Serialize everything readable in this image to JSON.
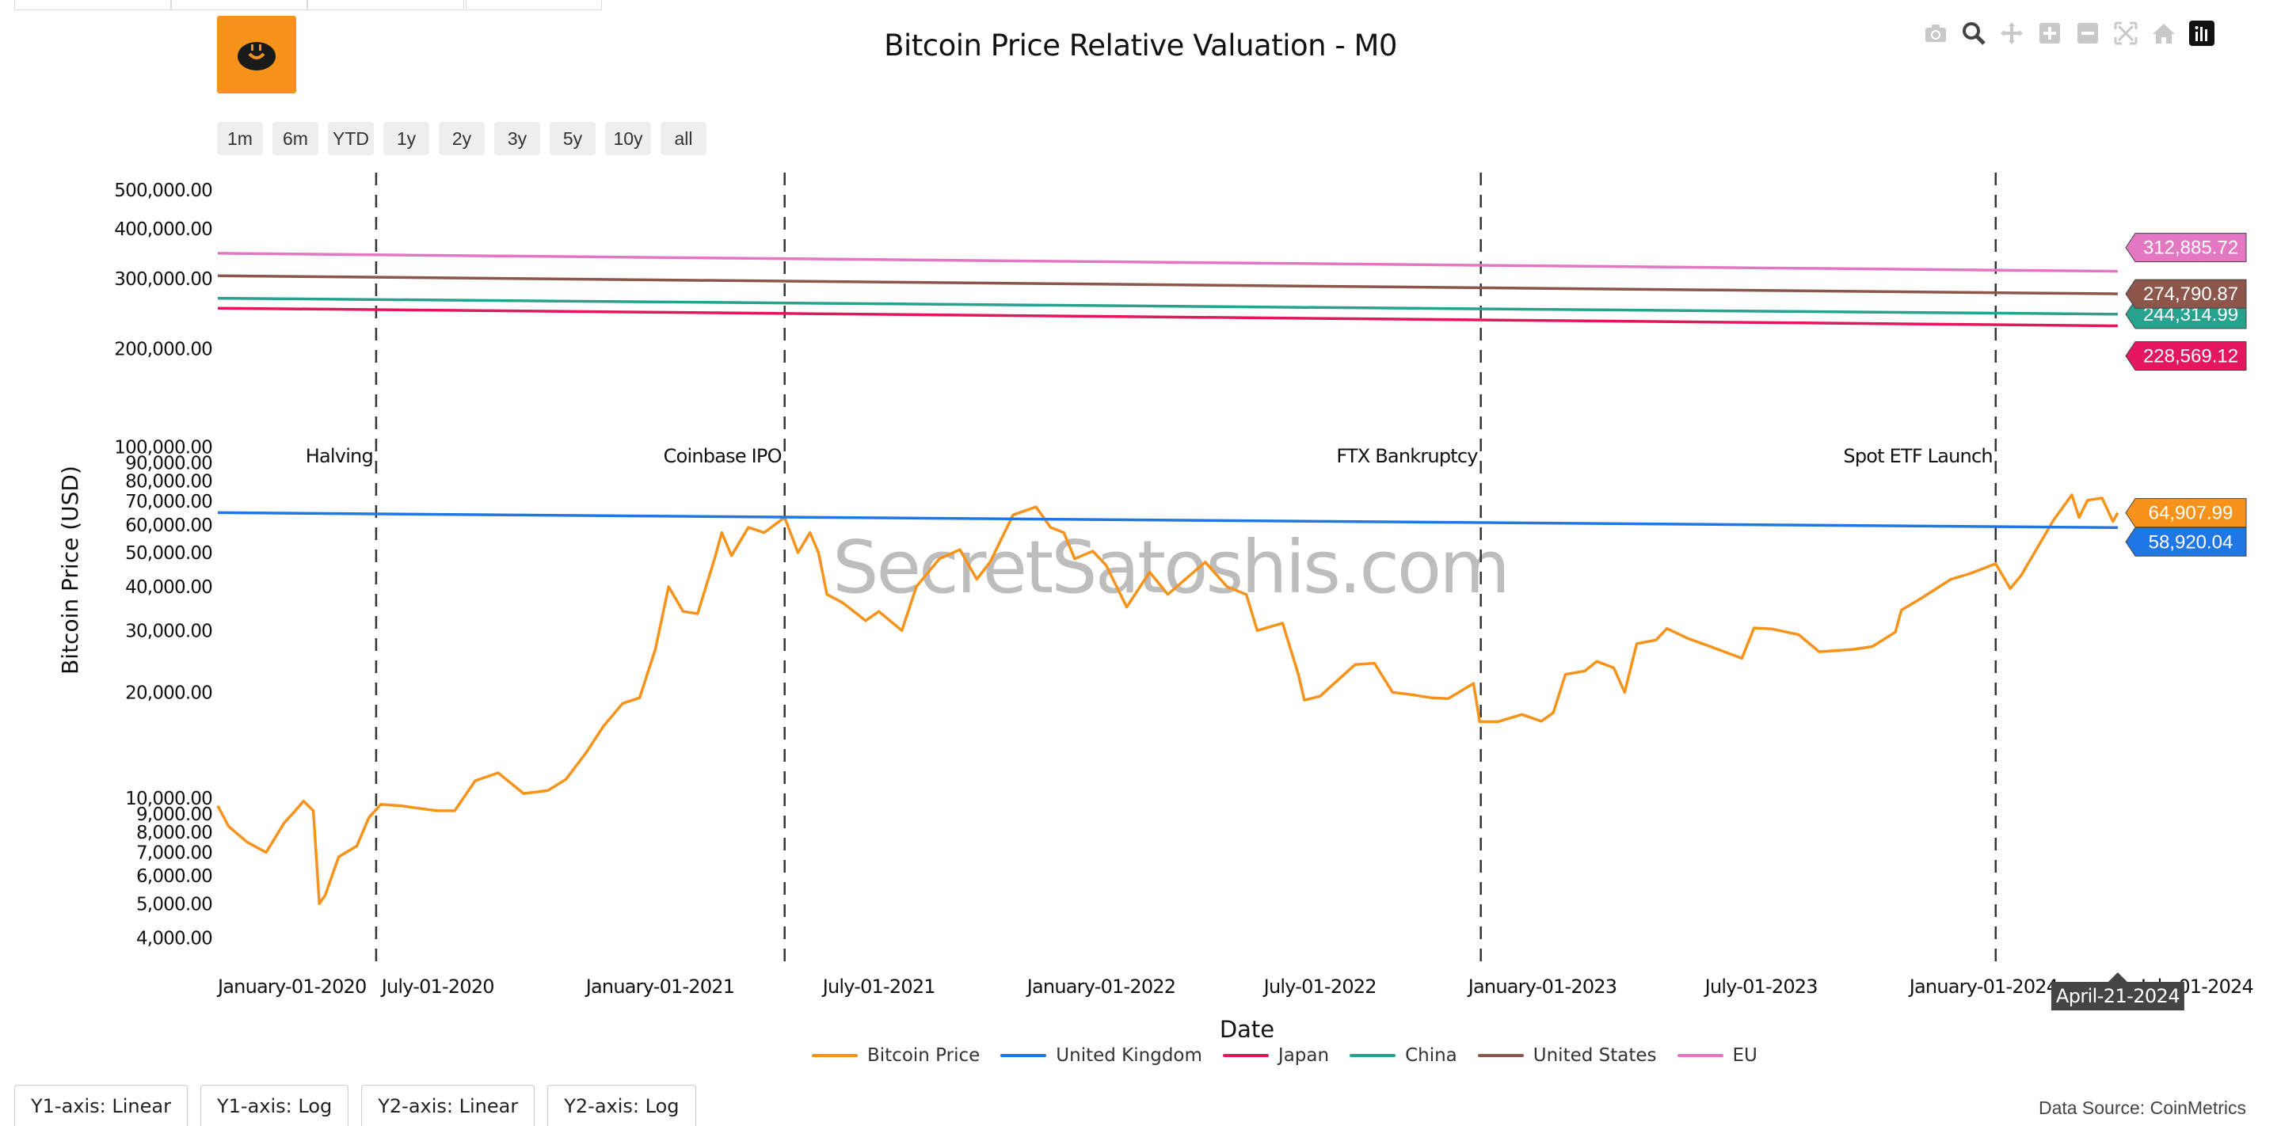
{
  "title": "Bitcoin Price Relative Valuation - M0",
  "range_buttons": [
    "1m",
    "6m",
    "YTD",
    "1y",
    "2y",
    "3y",
    "5y",
    "10y",
    "all"
  ],
  "axis_buttons": [
    "Y1-axis: Linear",
    "Y1-axis: Log",
    "Y2-axis: Linear",
    "Y2-axis: Log"
  ],
  "data_source": "Data Source: CoinMetrics",
  "watermark": "SecretSatoshis.com",
  "hover_label": "April-21-2024",
  "modebar_icons": [
    "camera-icon",
    "zoom-icon",
    "pan-icon",
    "zoom-in-icon",
    "zoom-out-icon",
    "autoscale-icon",
    "reset-axes-icon",
    "plotly-logo-icon"
  ],
  "chart_data": {
    "type": "line",
    "title": "Bitcoin Price Relative Valuation - M0",
    "xlabel": "Date",
    "ylabel": "Bitcoin Price (USD)",
    "yscale": "log",
    "x_range": [
      "2020-01-01",
      "2024-04-25"
    ],
    "y1_range": [
      3500,
      105000
    ],
    "y2_range": [
      175000,
      560000
    ],
    "x_ticks": [
      "January-01-2020",
      "July-01-2020",
      "January-01-2021",
      "July-01-2021",
      "January-01-2022",
      "July-01-2022",
      "January-01-2023",
      "July-01-2023",
      "January-01-2024",
      "July-01-2024"
    ],
    "y1_ticks": [
      "4,000.00",
      "5,000.00",
      "6,000.00",
      "7,000.00",
      "8,000.00",
      "9,000.00",
      "10,000.00",
      "20,000.00",
      "30,000.00",
      "40,000.00",
      "50,000.00",
      "60,000.00",
      "70,000.00",
      "80,000.00",
      "90,000.00",
      "100,000.00"
    ],
    "y2_ticks": [
      "200,000.00",
      "300,000.00",
      "400,000.00",
      "500,000.00"
    ],
    "events": [
      {
        "date": "2020-05-11",
        "label": "Halving"
      },
      {
        "date": "2021-04-14",
        "label": "Coinbase IPO"
      },
      {
        "date": "2022-11-11",
        "label": "FTX Bankruptcy"
      },
      {
        "date": "2024-01-11",
        "label": "Spot ETF Launch"
      }
    ],
    "series": [
      {
        "name": "Bitcoin Price",
        "color": "#f7931a",
        "axis": "y1",
        "last_label": "64,907.99",
        "points": [
          [
            "2020-01-01",
            9500
          ],
          [
            "2020-01-10",
            8300
          ],
          [
            "2020-01-25",
            7500
          ],
          [
            "2020-02-10",
            7000
          ],
          [
            "2020-02-25",
            8500
          ],
          [
            "2020-03-05",
            9200
          ],
          [
            "2020-03-12",
            9800
          ],
          [
            "2020-03-20",
            9200
          ],
          [
            "2020-03-25",
            5000
          ],
          [
            "2020-03-30",
            5300
          ],
          [
            "2020-04-10",
            6800
          ],
          [
            "2020-04-25",
            7300
          ],
          [
            "2020-05-05",
            8800
          ],
          [
            "2020-05-15",
            9600
          ],
          [
            "2020-06-01",
            9500
          ],
          [
            "2020-06-20",
            9300
          ],
          [
            "2020-07-01",
            9200
          ],
          [
            "2020-07-15",
            9200
          ],
          [
            "2020-08-01",
            11200
          ],
          [
            "2020-08-20",
            11800
          ],
          [
            "2020-09-10",
            10300
          ],
          [
            "2020-09-30",
            10500
          ],
          [
            "2020-10-15",
            11300
          ],
          [
            "2020-11-01",
            13500
          ],
          [
            "2020-11-15",
            16000
          ],
          [
            "2020-12-01",
            18600
          ],
          [
            "2020-12-15",
            19300
          ],
          [
            "2020-12-28",
            26500
          ],
          [
            "2021-01-08",
            40000
          ],
          [
            "2021-01-20",
            34000
          ],
          [
            "2021-02-01",
            33500
          ],
          [
            "2021-02-15",
            48000
          ],
          [
            "2021-02-21",
            57000
          ],
          [
            "2021-03-01",
            49000
          ],
          [
            "2021-03-15",
            59000
          ],
          [
            "2021-03-28",
            57000
          ],
          [
            "2021-04-14",
            63000
          ],
          [
            "2021-04-25",
            50000
          ],
          [
            "2021-05-05",
            57000
          ],
          [
            "2021-05-12",
            50000
          ],
          [
            "2021-05-19",
            38000
          ],
          [
            "2021-06-01",
            36000
          ],
          [
            "2021-06-20",
            32000
          ],
          [
            "2021-07-01",
            34000
          ],
          [
            "2021-07-20",
            30000
          ],
          [
            "2021-08-01",
            40000
          ],
          [
            "2021-08-20",
            48000
          ],
          [
            "2021-09-06",
            51000
          ],
          [
            "2021-09-20",
            42000
          ],
          [
            "2021-10-01",
            47000
          ],
          [
            "2021-10-20",
            64000
          ],
          [
            "2021-11-08",
            67500
          ],
          [
            "2021-11-20",
            59000
          ],
          [
            "2021-12-01",
            57000
          ],
          [
            "2021-12-10",
            48000
          ],
          [
            "2021-12-25",
            50500
          ],
          [
            "2022-01-05",
            46000
          ],
          [
            "2022-01-22",
            35000
          ],
          [
            "2022-02-10",
            44000
          ],
          [
            "2022-02-25",
            38000
          ],
          [
            "2022-03-28",
            47000
          ],
          [
            "2022-04-15",
            40000
          ],
          [
            "2022-05-01",
            38000
          ],
          [
            "2022-05-10",
            30000
          ],
          [
            "2022-05-31",
            31500
          ],
          [
            "2022-06-13",
            22500
          ],
          [
            "2022-06-18",
            19000
          ],
          [
            "2022-07-01",
            19500
          ],
          [
            "2022-07-30",
            24000
          ],
          [
            "2022-08-15",
            24200
          ],
          [
            "2022-08-30",
            20000
          ],
          [
            "2022-09-15",
            19700
          ],
          [
            "2022-10-01",
            19300
          ],
          [
            "2022-10-15",
            19200
          ],
          [
            "2022-11-05",
            21200
          ],
          [
            "2022-11-10",
            16500
          ],
          [
            "2022-11-25",
            16500
          ],
          [
            "2022-12-15",
            17300
          ],
          [
            "2022-12-31",
            16550
          ],
          [
            "2023-01-10",
            17500
          ],
          [
            "2023-01-20",
            22500
          ],
          [
            "2023-02-05",
            23000
          ],
          [
            "2023-02-15",
            24500
          ],
          [
            "2023-03-01",
            23500
          ],
          [
            "2023-03-10",
            20000
          ],
          [
            "2023-03-20",
            27500
          ],
          [
            "2023-04-05",
            28200
          ],
          [
            "2023-04-14",
            30400
          ],
          [
            "2023-05-01",
            28500
          ],
          [
            "2023-05-20",
            27000
          ],
          [
            "2023-06-15",
            25000
          ],
          [
            "2023-06-25",
            30500
          ],
          [
            "2023-07-10",
            30300
          ],
          [
            "2023-08-01",
            29200
          ],
          [
            "2023-08-18",
            26100
          ],
          [
            "2023-09-15",
            26500
          ],
          [
            "2023-10-01",
            27000
          ],
          [
            "2023-10-20",
            29700
          ],
          [
            "2023-10-25",
            34300
          ],
          [
            "2023-11-10",
            37000
          ],
          [
            "2023-12-05",
            42000
          ],
          [
            "2023-12-20",
            43500
          ],
          [
            "2024-01-11",
            46500
          ],
          [
            "2024-01-23",
            39500
          ],
          [
            "2024-02-01",
            43000
          ],
          [
            "2024-02-15",
            52000
          ],
          [
            "2024-02-28",
            62000
          ],
          [
            "2024-03-14",
            73000
          ],
          [
            "2024-03-20",
            63000
          ],
          [
            "2024-03-27",
            70500
          ],
          [
            "2024-04-08",
            71500
          ],
          [
            "2024-04-17",
            61300
          ],
          [
            "2024-04-21",
            64907.99
          ]
        ]
      },
      {
        "name": "United Kingdom",
        "color": "#1f77e5",
        "axis": "y1",
        "last_label": "58,920.04",
        "points": [
          [
            "2020-01-01",
            65000
          ],
          [
            "2024-04-21",
            58920.04
          ]
        ]
      },
      {
        "name": "Japan",
        "color": "#e3165e",
        "axis": "y2",
        "last_label": "228,569.12",
        "points": [
          [
            "2020-01-01",
            253000
          ],
          [
            "2024-04-21",
            228569.12
          ]
        ]
      },
      {
        "name": "China",
        "color": "#26a28e",
        "axis": "y2",
        "last_label": "244,314.99",
        "points": [
          [
            "2020-01-01",
            268000
          ],
          [
            "2024-04-21",
            244314.99
          ]
        ]
      },
      {
        "name": "United States",
        "color": "#8c564b",
        "axis": "y2",
        "last_label": "274,790.87",
        "points": [
          [
            "2020-01-01",
            305000
          ],
          [
            "2024-04-21",
            274790.87
          ]
        ]
      },
      {
        "name": "EU",
        "color": "#e377c2",
        "axis": "y2",
        "last_label": "312,885.72",
        "points": [
          [
            "2020-01-01",
            347000
          ],
          [
            "2024-04-21",
            312885.72
          ]
        ]
      }
    ]
  }
}
